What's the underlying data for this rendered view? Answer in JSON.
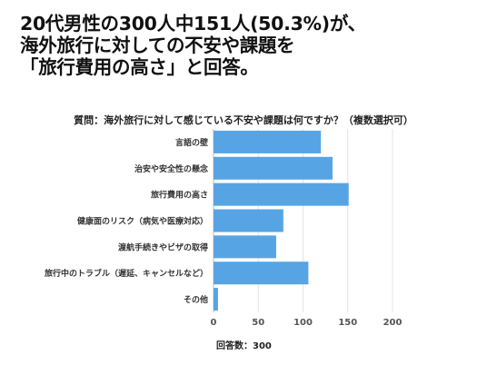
{
  "headline": {
    "lines": [
      "20代男性の300人中151人(50.3%)が、",
      "海外旅行に対しての不安や課題を",
      "「旅行費用の高さ」と回答。"
    ]
  },
  "chart_data": {
    "type": "bar",
    "orientation": "horizontal",
    "title": "質問：海外旅行に対して感じている不安や課題は何ですか？（複数選択可）",
    "categories": [
      "言語の壁",
      "治安や安全性の懸念",
      "旅行費用の高さ",
      "健康面のリスク（病気や医療対応）",
      "渡航手続きやビザの取得",
      "旅行中のトラブル（遅延、キャンセルなど）",
      "その他"
    ],
    "values": [
      120,
      133,
      151,
      78,
      70,
      106,
      5
    ],
    "xticks": [
      "0",
      "50",
      "100",
      "150",
      "200"
    ],
    "xlim": [
      0,
      200
    ],
    "grid": true,
    "bar_color": "#57a4e5",
    "footnote": "回答数：300"
  }
}
